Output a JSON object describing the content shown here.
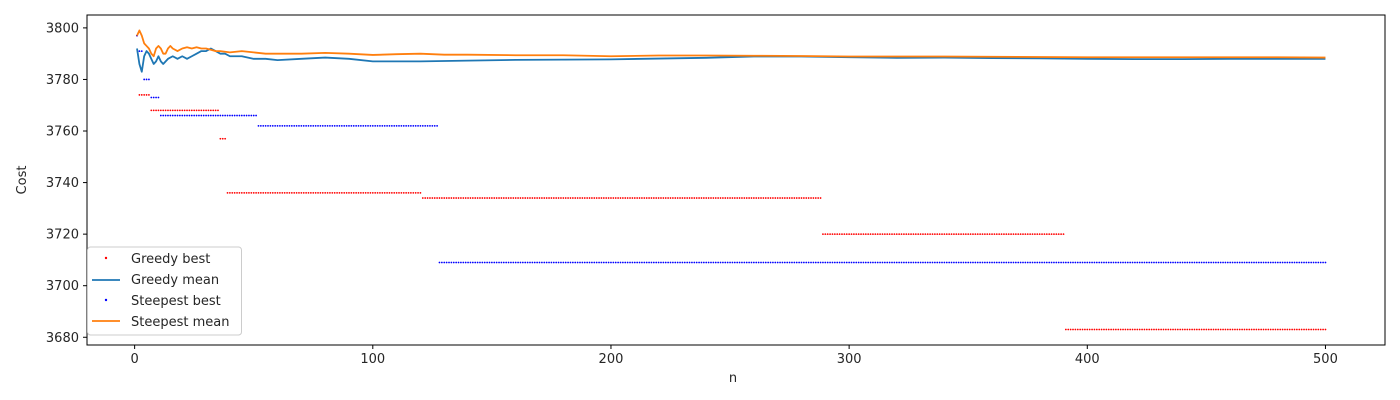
{
  "chart_data": {
    "type": "line",
    "title": "",
    "xlabel": "n",
    "ylabel": "Cost",
    "xlim": [
      -20,
      525
    ],
    "ylim": [
      3677,
      3805
    ],
    "xticks": [
      0,
      100,
      200,
      300,
      400,
      500
    ],
    "yticks": [
      3680,
      3700,
      3720,
      3740,
      3760,
      3780,
      3800
    ],
    "grid": false,
    "legend_position": "lower-left",
    "series": [
      {
        "name": "Greedy best",
        "style": "dots",
        "color": "#ff0000",
        "steps": [
          {
            "x_from": 1,
            "x_to": 1,
            "y": 3797
          },
          {
            "x_from": 2,
            "x_to": 6,
            "y": 3774
          },
          {
            "x_from": 7,
            "x_to": 35,
            "y": 3768
          },
          {
            "x_from": 36,
            "x_to": 38,
            "y": 3757
          },
          {
            "x_from": 39,
            "x_to": 120,
            "y": 3736
          },
          {
            "x_from": 121,
            "x_to": 288,
            "y": 3734
          },
          {
            "x_from": 289,
            "x_to": 390,
            "y": 3720
          },
          {
            "x_from": 391,
            "x_to": 500,
            "y": 3683
          }
        ]
      },
      {
        "name": "Greedy mean",
        "style": "line",
        "color": "#1f77b4",
        "points": [
          [
            1,
            3792
          ],
          [
            2,
            3786
          ],
          [
            3,
            3783
          ],
          [
            4,
            3789
          ],
          [
            5,
            3791
          ],
          [
            6,
            3790
          ],
          [
            7,
            3788
          ],
          [
            8,
            3786
          ],
          [
            9,
            3787
          ],
          [
            10,
            3789
          ],
          [
            11,
            3787
          ],
          [
            12,
            3786
          ],
          [
            14,
            3788
          ],
          [
            16,
            3789
          ],
          [
            18,
            3788
          ],
          [
            20,
            3789
          ],
          [
            22,
            3788
          ],
          [
            24,
            3789
          ],
          [
            26,
            3790
          ],
          [
            28,
            3791
          ],
          [
            30,
            3791
          ],
          [
            32,
            3792
          ],
          [
            34,
            3791
          ],
          [
            36,
            3790
          ],
          [
            38,
            3790
          ],
          [
            40,
            3789
          ],
          [
            45,
            3789
          ],
          [
            50,
            3788
          ],
          [
            55,
            3788
          ],
          [
            60,
            3787.5
          ],
          [
            70,
            3788
          ],
          [
            80,
            3788.5
          ],
          [
            90,
            3788
          ],
          [
            100,
            3787
          ],
          [
            120,
            3787
          ],
          [
            140,
            3787.3
          ],
          [
            160,
            3787.6
          ],
          [
            180,
            3787.7
          ],
          [
            200,
            3787.8
          ],
          [
            220,
            3788.1
          ],
          [
            240,
            3788.4
          ],
          [
            260,
            3788.9
          ],
          [
            280,
            3788.9
          ],
          [
            300,
            3788.6
          ],
          [
            320,
            3788.4
          ],
          [
            340,
            3788.5
          ],
          [
            360,
            3788.3
          ],
          [
            380,
            3788.2
          ],
          [
            400,
            3788
          ],
          [
            420,
            3787.9
          ],
          [
            440,
            3787.9
          ],
          [
            460,
            3788
          ],
          [
            480,
            3788
          ],
          [
            500,
            3788
          ]
        ]
      },
      {
        "name": "Steepest best",
        "style": "dots",
        "color": "#0000ff",
        "steps": [
          {
            "x_from": 1,
            "x_to": 1,
            "y": 3797
          },
          {
            "x_from": 2,
            "x_to": 3,
            "y": 3791
          },
          {
            "x_from": 4,
            "x_to": 6,
            "y": 3780
          },
          {
            "x_from": 7,
            "x_to": 10,
            "y": 3773
          },
          {
            "x_from": 11,
            "x_to": 51,
            "y": 3766
          },
          {
            "x_from": 52,
            "x_to": 127,
            "y": 3762
          },
          {
            "x_from": 128,
            "x_to": 500,
            "y": 3709
          }
        ]
      },
      {
        "name": "Steepest mean",
        "style": "line",
        "color": "#ff7f0e",
        "points": [
          [
            1,
            3797
          ],
          [
            2,
            3799
          ],
          [
            3,
            3797
          ],
          [
            4,
            3794
          ],
          [
            5,
            3793
          ],
          [
            6,
            3792
          ],
          [
            7,
            3790
          ],
          [
            8,
            3789
          ],
          [
            9,
            3792
          ],
          [
            10,
            3793
          ],
          [
            11,
            3792
          ],
          [
            12,
            3790
          ],
          [
            13,
            3790
          ],
          [
            14,
            3792
          ],
          [
            15,
            3793
          ],
          [
            16,
            3792
          ],
          [
            18,
            3791
          ],
          [
            20,
            3792
          ],
          [
            22,
            3792.5
          ],
          [
            24,
            3792
          ],
          [
            26,
            3792.5
          ],
          [
            28,
            3792
          ],
          [
            30,
            3792
          ],
          [
            32,
            3791.5
          ],
          [
            34,
            3791
          ],
          [
            36,
            3791
          ],
          [
            40,
            3790.5
          ],
          [
            45,
            3791
          ],
          [
            50,
            3790.5
          ],
          [
            55,
            3790
          ],
          [
            60,
            3790
          ],
          [
            70,
            3790
          ],
          [
            80,
            3790.3
          ],
          [
            90,
            3790
          ],
          [
            100,
            3789.5
          ],
          [
            110,
            3789.8
          ],
          [
            120,
            3790
          ],
          [
            130,
            3789.6
          ],
          [
            140,
            3789.6
          ],
          [
            160,
            3789.4
          ],
          [
            180,
            3789.4
          ],
          [
            200,
            3789
          ],
          [
            220,
            3789.3
          ],
          [
            240,
            3789.3
          ],
          [
            260,
            3789.2
          ],
          [
            280,
            3789.1
          ],
          [
            300,
            3788.9
          ],
          [
            320,
            3788.9
          ],
          [
            340,
            3788.9
          ],
          [
            360,
            3788.8
          ],
          [
            380,
            3788.7
          ],
          [
            400,
            3788.6
          ],
          [
            420,
            3788.6
          ],
          [
            440,
            3788.6
          ],
          [
            460,
            3788.6
          ],
          [
            480,
            3788.6
          ],
          [
            500,
            3788.5
          ]
        ]
      }
    ]
  }
}
